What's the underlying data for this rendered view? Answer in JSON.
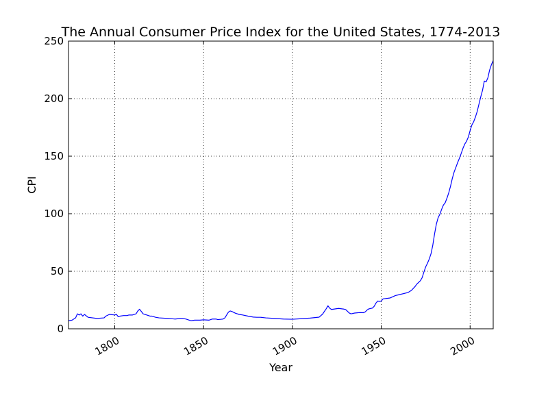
{
  "chart_data": {
    "type": "line",
    "title": "The Annual Consumer Price Index for the United States, 1774-2013",
    "xlabel": "Year",
    "ylabel": "CPI",
    "xlim": [
      1774,
      2013
    ],
    "ylim": [
      0,
      250
    ],
    "x_ticks": [
      1800,
      1850,
      1900,
      1950,
      2000
    ],
    "x_tick_labels": [
      "1800",
      "1850",
      "1900",
      "1950",
      "2000"
    ],
    "y_ticks": [
      0,
      50,
      100,
      150,
      200,
      250
    ],
    "y_tick_labels": [
      "0",
      "50",
      "100",
      "150",
      "200",
      "250"
    ],
    "grid": true,
    "line_color": "#0000ff",
    "series": [
      {
        "x": [
          1774,
          1776,
          1778,
          1779,
          1780,
          1781,
          1782,
          1783,
          1785,
          1790,
          1794,
          1795,
          1797,
          1800,
          1801,
          1802,
          1803,
          1805,
          1807,
          1808,
          1810,
          1812,
          1813,
          1814,
          1815,
          1816,
          1818,
          1820,
          1821,
          1822,
          1823,
          1825,
          1830,
          1834,
          1837,
          1838,
          1840,
          1842,
          1843,
          1845,
          1848,
          1850,
          1853,
          1855,
          1857,
          1858,
          1860,
          1861,
          1862,
          1863,
          1864,
          1865,
          1866,
          1868,
          1870,
          1872,
          1875,
          1878,
          1880,
          1882,
          1885,
          1890,
          1895,
          1900,
          1905,
          1910,
          1915,
          1917,
          1918,
          1919,
          1920,
          1921,
          1922,
          1925,
          1926,
          1929,
          1930,
          1931,
          1932,
          1933,
          1935,
          1938,
          1940,
          1941,
          1942,
          1943,
          1945,
          1946,
          1947,
          1948,
          1949,
          1950,
          1951,
          1955,
          1958,
          1960,
          1965,
          1967,
          1969,
          1970,
          1972,
          1973,
          1974,
          1975,
          1976,
          1977,
          1978,
          1979,
          1980,
          1981,
          1982,
          1983,
          1984,
          1985,
          1986,
          1987,
          1988,
          1989,
          1990,
          1991,
          1992,
          1993,
          1994,
          1995,
          1996,
          1997,
          1998,
          1999,
          2000,
          2001,
          2002,
          2003,
          2004,
          2005,
          2006,
          2007,
          2008,
          2009,
          2010,
          2011,
          2012,
          2013
        ],
        "values": [
          7,
          7.5,
          9.5,
          13,
          12,
          13,
          11,
          12.5,
          10,
          9,
          9.5,
          11,
          12.5,
          12,
          12.5,
          10.5,
          11,
          11.5,
          11.5,
          12,
          12,
          13,
          15.5,
          17,
          15,
          13,
          12,
          11,
          11,
          10.5,
          10,
          9.5,
          9,
          8.5,
          9,
          9,
          8.5,
          7.5,
          7,
          7.5,
          7.5,
          7.8,
          7.5,
          8.5,
          8.5,
          8,
          8.3,
          8.5,
          9.5,
          12,
          14.5,
          15.5,
          15,
          13.5,
          12.5,
          12,
          11,
          10.2,
          10,
          10,
          9.5,
          9,
          8.5,
          8.3,
          8.8,
          9.3,
          10.1,
          12.8,
          15.1,
          17.3,
          20,
          17.9,
          16.8,
          17.5,
          17.7,
          17.1,
          16.7,
          15.2,
          13.7,
          13,
          13.7,
          14.1,
          14,
          14.7,
          16.3,
          17.3,
          18,
          19.5,
          22.3,
          24.1,
          23.8,
          24.1,
          26,
          26.8,
          28.9,
          29.6,
          31.5,
          33.4,
          36.7,
          38.8,
          41.8,
          44.4,
          49.3,
          53.8,
          56.9,
          60.6,
          65.2,
          72.6,
          82.4,
          90.9,
          96.5,
          99.6,
          103.9,
          107.6,
          109.6,
          113.6,
          118.3,
          124,
          130.7,
          136.2,
          140.3,
          144.5,
          148.2,
          152.4,
          156.9,
          160.5,
          163,
          166.6,
          172.2,
          177.1,
          179.9,
          184,
          188.9,
          195.3,
          201.6,
          207.3,
          215.3,
          214.5,
          218.1,
          224.9,
          229.6,
          233
        ]
      }
    ]
  }
}
